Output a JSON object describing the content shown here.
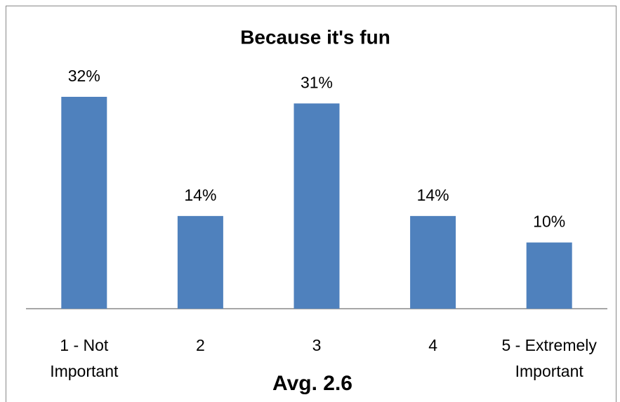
{
  "chart_data": {
    "type": "bar",
    "title": "Because it's fun",
    "categories": [
      "1 - Not Important",
      "2",
      "3",
      "4",
      "5 - Extremely Important"
    ],
    "values": [
      32,
      14,
      31,
      14,
      10
    ],
    "value_labels": [
      "32%",
      "14%",
      "31%",
      "14%",
      "10%"
    ],
    "color": "#4f81bd",
    "annotation": "Avg. 2.6"
  }
}
